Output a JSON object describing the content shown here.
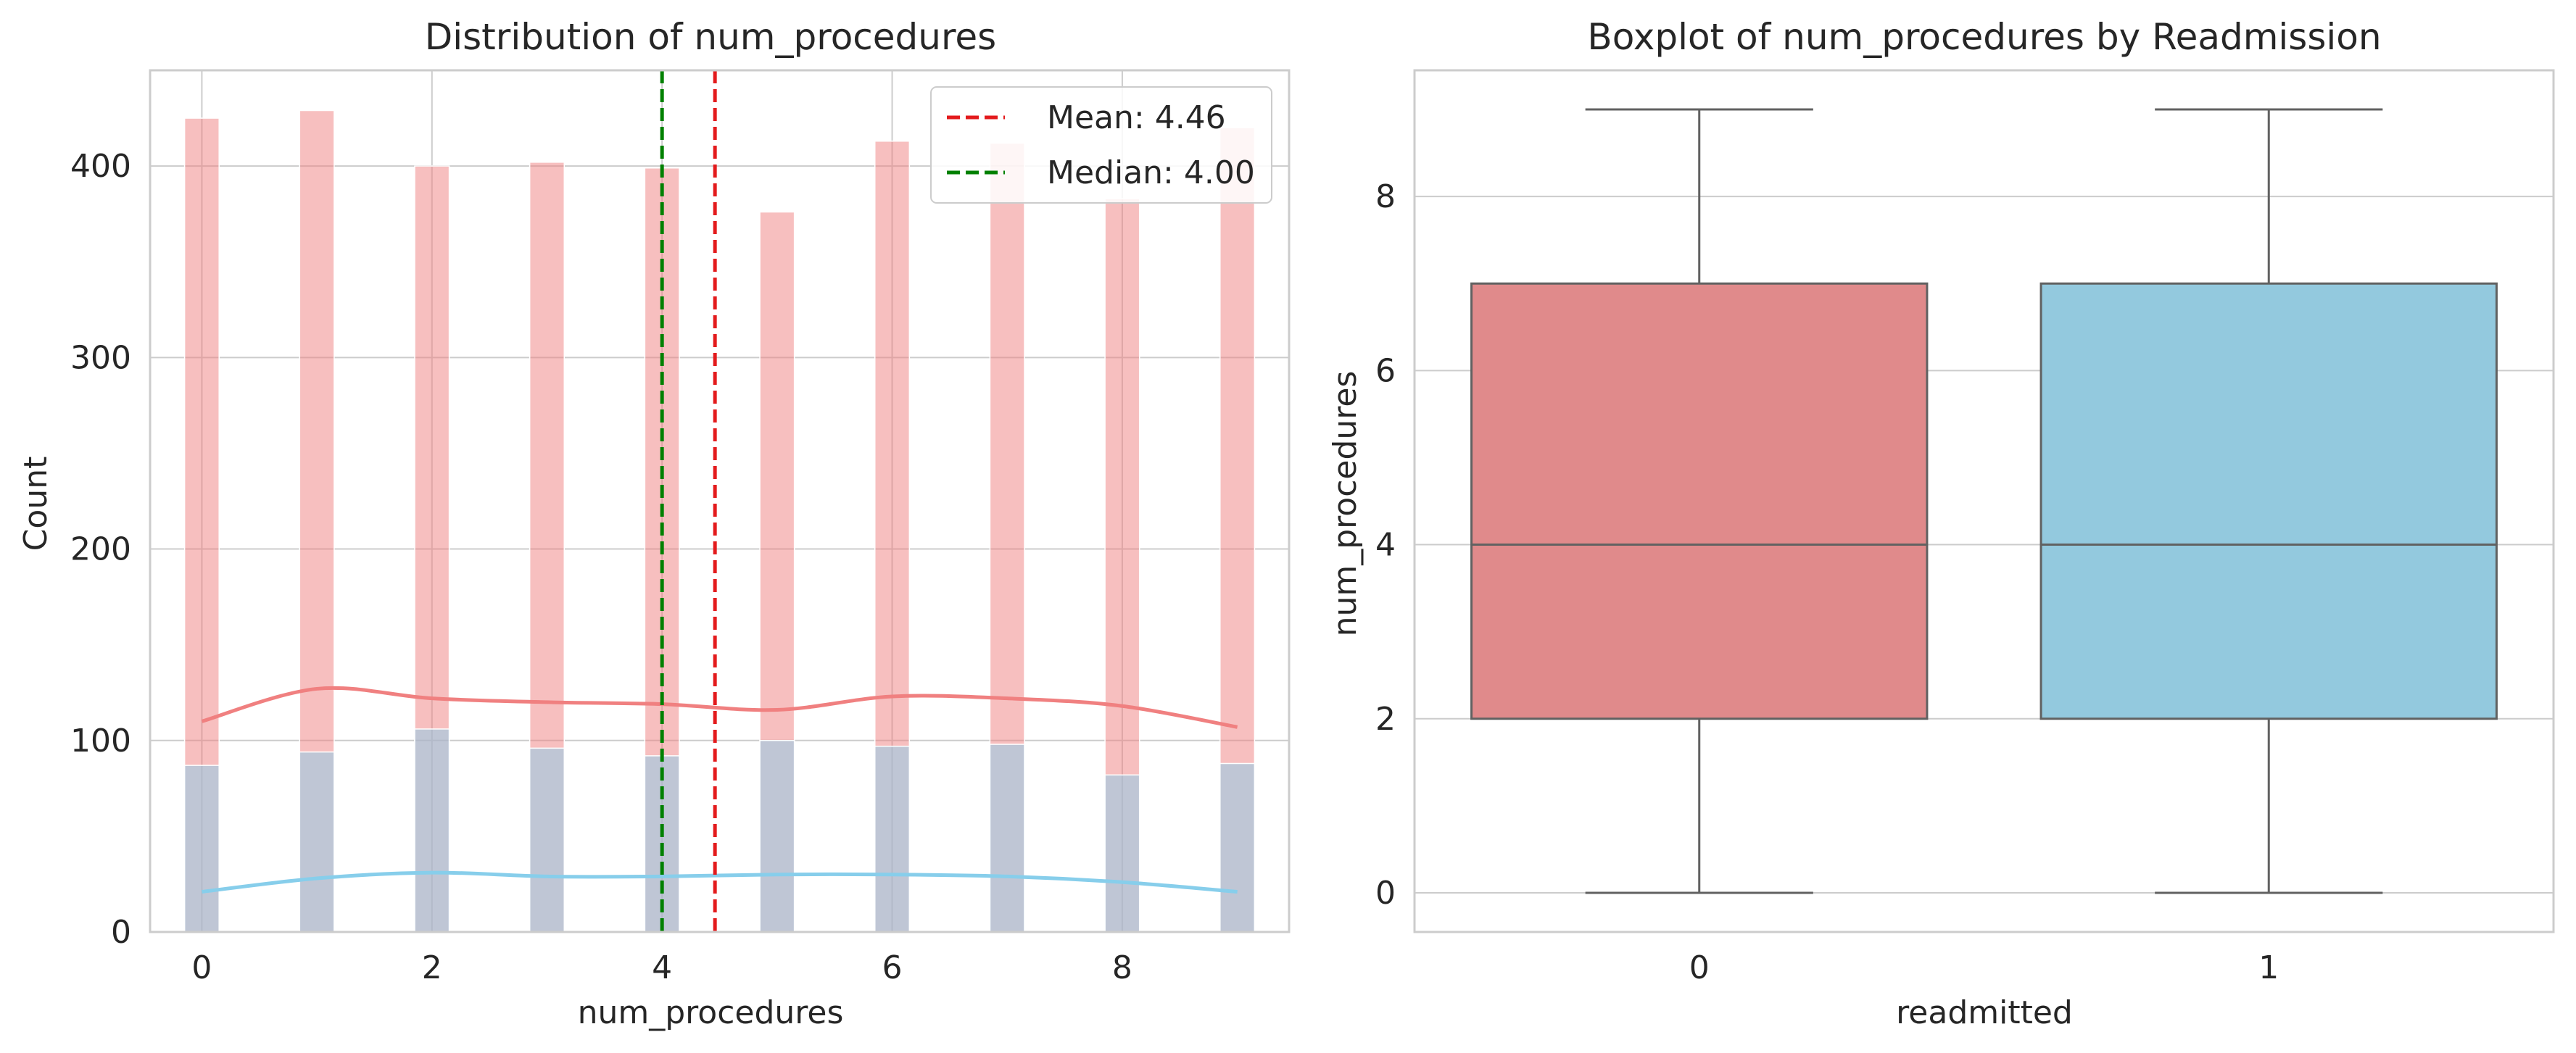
{
  "chart_data": [
    {
      "type": "histogram",
      "title": "Distribution of num_procedures",
      "xlabel": "num_procedures",
      "ylabel": "Count",
      "xlim": [
        -0.45,
        9.45
      ],
      "ylim": [
        0,
        450
      ],
      "xticks": [
        0,
        2,
        4,
        6,
        8
      ],
      "yticks": [
        0,
        100,
        200,
        300,
        400
      ],
      "grid": true,
      "bar_width": 0.3,
      "series": [
        {
          "color": "#f08080",
          "x": [
            0,
            1,
            2,
            3,
            4,
            5,
            6,
            7,
            8,
            9
          ],
          "values": [
            425,
            429,
            400,
            402,
            399,
            376,
            413,
            412,
            383,
            420
          ],
          "kde": [
            110,
            127,
            122,
            120,
            119,
            116,
            123,
            122,
            118,
            107
          ]
        },
        {
          "color": "#87ceeb",
          "x": [
            0,
            1,
            2,
            3,
            4,
            5,
            6,
            7,
            8,
            9
          ],
          "values": [
            87,
            94,
            106,
            96,
            92,
            100,
            97,
            98,
            82,
            88
          ],
          "kde": [
            21,
            28,
            31,
            29,
            29,
            30,
            30,
            29,
            26,
            21
          ]
        }
      ],
      "reference_lines": [
        {
          "label": "Mean: 4.46",
          "value": 4.46,
          "color": "#e31a1c",
          "style": "dashed"
        },
        {
          "label": "Median: 4.00",
          "value": 4.0,
          "color": "#008000",
          "style": "dashed"
        }
      ],
      "legend": "top-right"
    },
    {
      "type": "box",
      "title": "Boxplot of num_procedures by Readmission",
      "xlabel": "readmitted",
      "ylabel": "num_procedures",
      "ylim": [
        -0.45,
        9.45
      ],
      "yticks": [
        0,
        2,
        4,
        6,
        8
      ],
      "grid": true,
      "categories": [
        "0",
        "1"
      ],
      "boxes": [
        {
          "category": "0",
          "min": 0,
          "q1": 2,
          "median": 4,
          "q3": 7,
          "max": 9,
          "color": "#e08a8b"
        },
        {
          "category": "1",
          "min": 0,
          "q1": 2,
          "median": 4,
          "q3": 7,
          "max": 9,
          "color": "#93c9de"
        }
      ]
    }
  ]
}
